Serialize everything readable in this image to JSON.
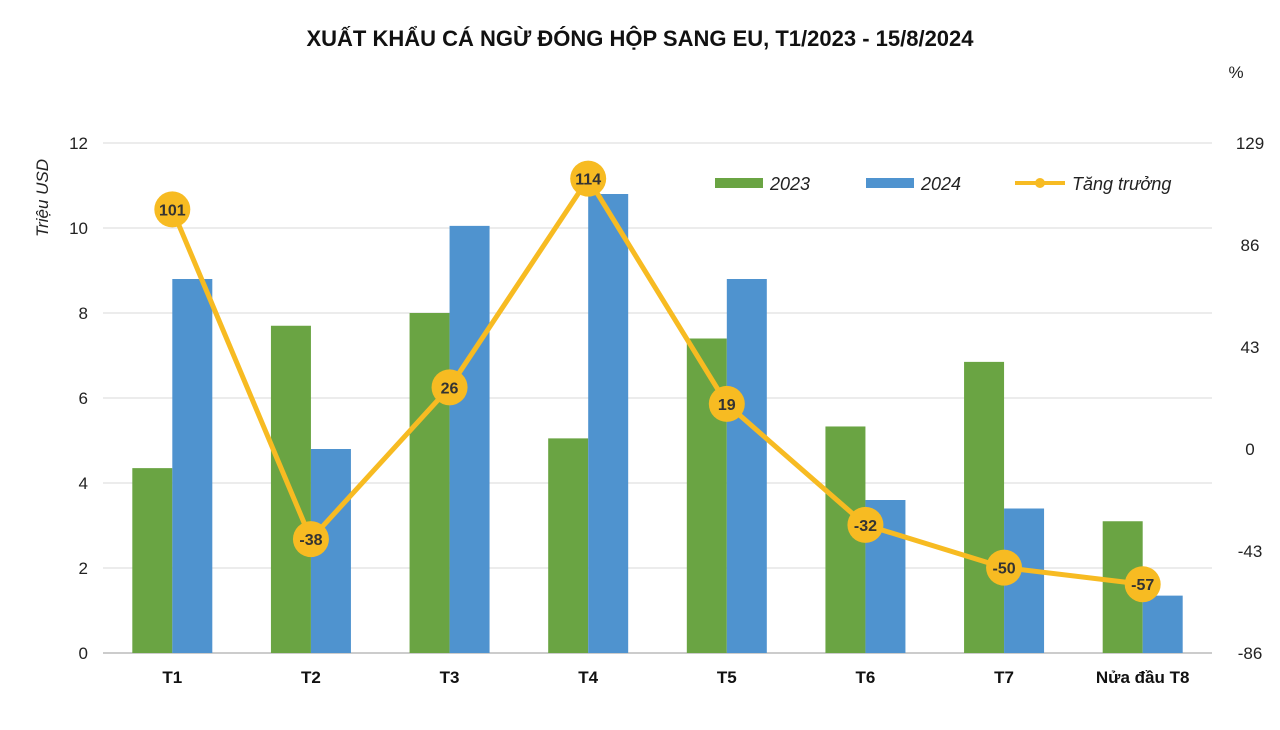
{
  "chart_data": {
    "type": "bar",
    "title": "XUẤT KHẨU CÁ NGỪ ĐÓNG HỘP SANG EU, T1/2023 - 15/8/2024",
    "categories": [
      "T1",
      "T2",
      "T3",
      "T4",
      "T5",
      "T6",
      "T7",
      "Nửa đầu T8"
    ],
    "series": [
      {
        "name": "2023",
        "type": "bar",
        "axis": "left",
        "color": "#6aa443",
        "values": [
          4.35,
          7.7,
          8.0,
          5.05,
          7.4,
          5.33,
          6.85,
          3.1
        ]
      },
      {
        "name": "2024",
        "type": "bar",
        "axis": "left",
        "color": "#4f93cf",
        "values": [
          8.8,
          4.8,
          10.05,
          10.8,
          8.8,
          3.6,
          3.4,
          1.35
        ]
      },
      {
        "name": "Tăng trưởng",
        "type": "line",
        "axis": "right",
        "color": "#f7bb22",
        "values": [
          101,
          -38,
          26,
          114,
          19,
          -32,
          -50,
          -57
        ]
      }
    ],
    "ylabel": "Triệu USD",
    "ylim": [
      0,
      12
    ],
    "yticks": [
      "0",
      "2",
      "4",
      "6",
      "8",
      "10",
      "12"
    ],
    "y2label": "%",
    "y2lim": [
      -86,
      129
    ],
    "y2ticks": [
      "-86",
      "-43",
      "0",
      "43",
      "86",
      "129"
    ],
    "grid": true,
    "legend_position": "top-right"
  }
}
